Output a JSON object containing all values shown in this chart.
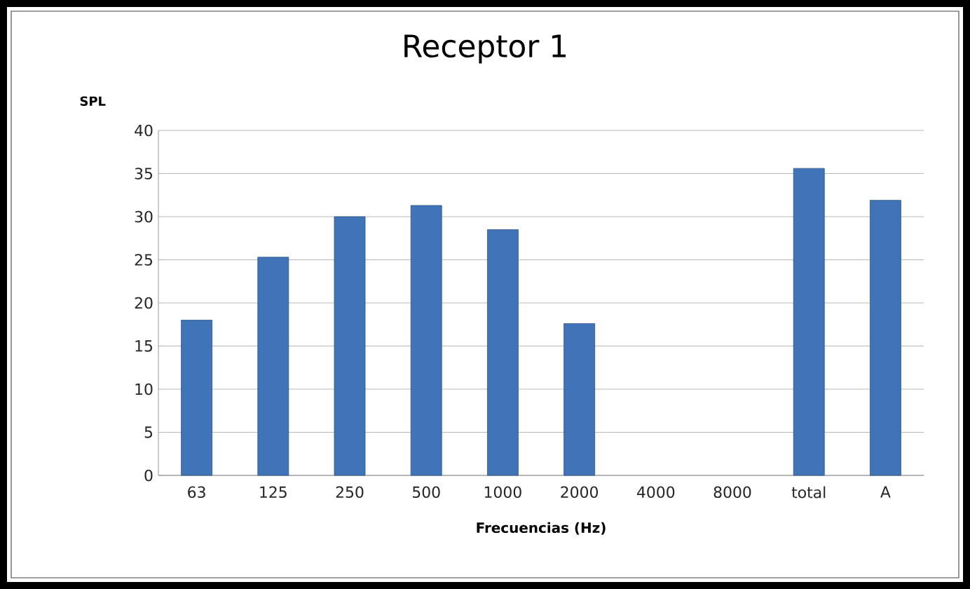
{
  "chart_data": {
    "type": "bar",
    "title": "Receptor 1",
    "xlabel": "Frecuencias (Hz)",
    "ylabel": "SPL",
    "categories": [
      "63",
      "125",
      "250",
      "500",
      "1000",
      "2000",
      "4000",
      "8000",
      "total",
      "A"
    ],
    "values": [
      18.0,
      25.3,
      30.0,
      31.3,
      28.5,
      17.6,
      null,
      null,
      35.6,
      31.9
    ],
    "color": "#3f75b8",
    "ylim": [
      0,
      40
    ],
    "yticks": [
      0,
      5,
      10,
      15,
      20,
      25,
      30,
      35,
      40
    ],
    "grid": "y"
  }
}
